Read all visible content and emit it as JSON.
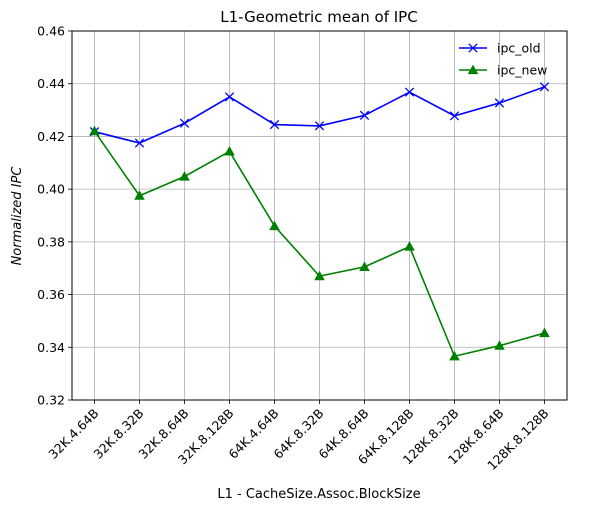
{
  "chart_data": {
    "type": "line",
    "title": "L1-Geometric mean of IPC",
    "xlabel": "L1 - CacheSize.Assoc.BlockSize",
    "ylabel": "Normalized  IPC",
    "categories": [
      "32K.4.64B",
      "32K.8.32B",
      "32K.8.64B",
      "32K.8.128B",
      "64K.4.64B",
      "64K.8.32B",
      "64K.8.64B",
      "64K.8.128B",
      "128K.8.32B",
      "128K.8.64B",
      "128K.8.128B"
    ],
    "ylim": [
      0.32,
      0.46
    ],
    "yticks": [
      "0.32",
      "0.34",
      "0.36",
      "0.38",
      "0.40",
      "0.42",
      "0.44",
      "0.46"
    ],
    "grid": true,
    "legend_position": "top-right",
    "series": [
      {
        "name": "ipc_old",
        "color": "#0000ff",
        "marker": "x",
        "values": [
          0.4218,
          0.4175,
          0.425,
          0.435,
          0.4245,
          0.424,
          0.428,
          0.4368,
          0.4278,
          0.4327,
          0.4388
        ]
      },
      {
        "name": "ipc_new",
        "color": "#008000",
        "marker": "triangle",
        "values": [
          0.422,
          0.3975,
          0.4048,
          0.4143,
          0.386,
          0.367,
          0.3705,
          0.3782,
          0.3366,
          0.3406,
          0.3454
        ]
      }
    ]
  }
}
